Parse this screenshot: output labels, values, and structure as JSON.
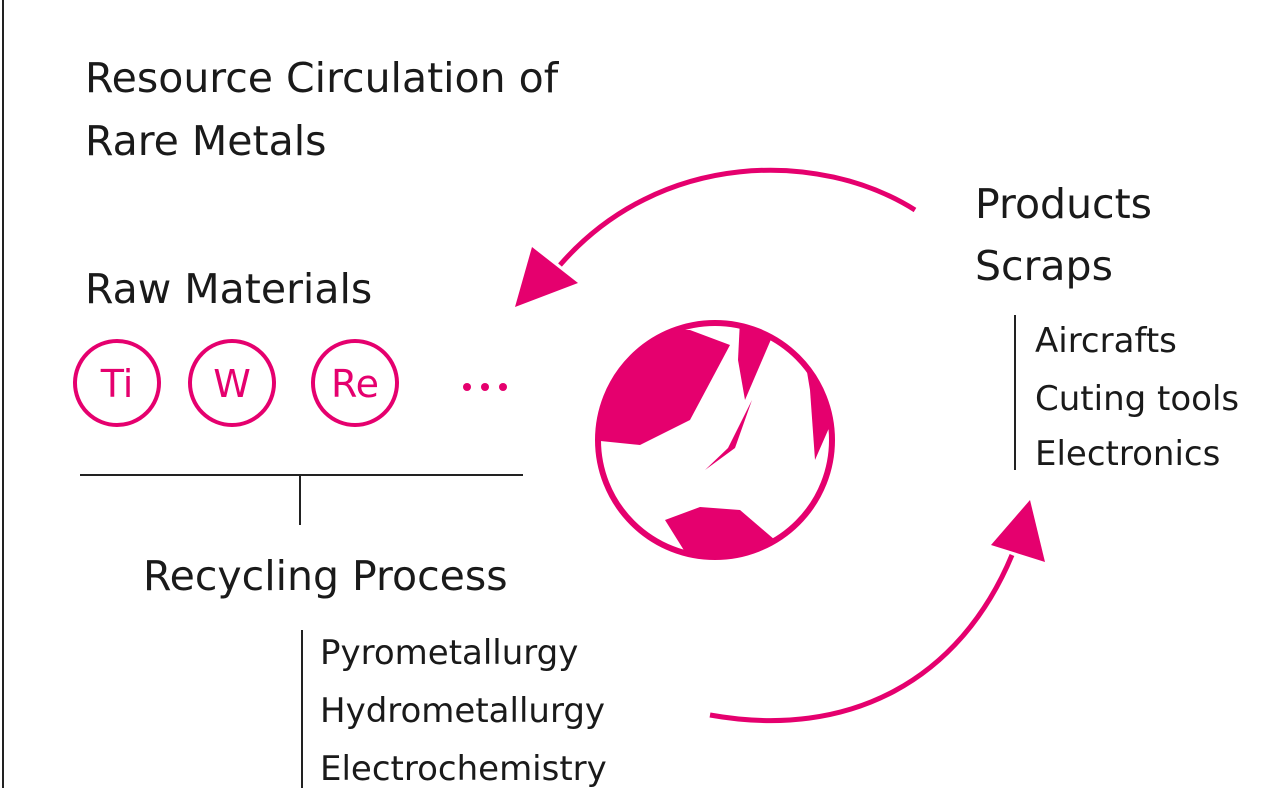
{
  "title": [
    "Resource Circulation of",
    "Rare Metals"
  ],
  "raw_materials": {
    "label": "Raw Materials",
    "elements": [
      "Ti",
      "W",
      "Re"
    ]
  },
  "recycling": {
    "label": "Recycling Process",
    "methods": [
      "Pyrometallurgy",
      "Hydrometallurgy",
      "Electrochemistry"
    ]
  },
  "products": {
    "label": [
      "Products",
      "Scraps"
    ],
    "items": [
      "Aircrafts",
      "Cuting tools",
      "Electronics"
    ]
  }
}
